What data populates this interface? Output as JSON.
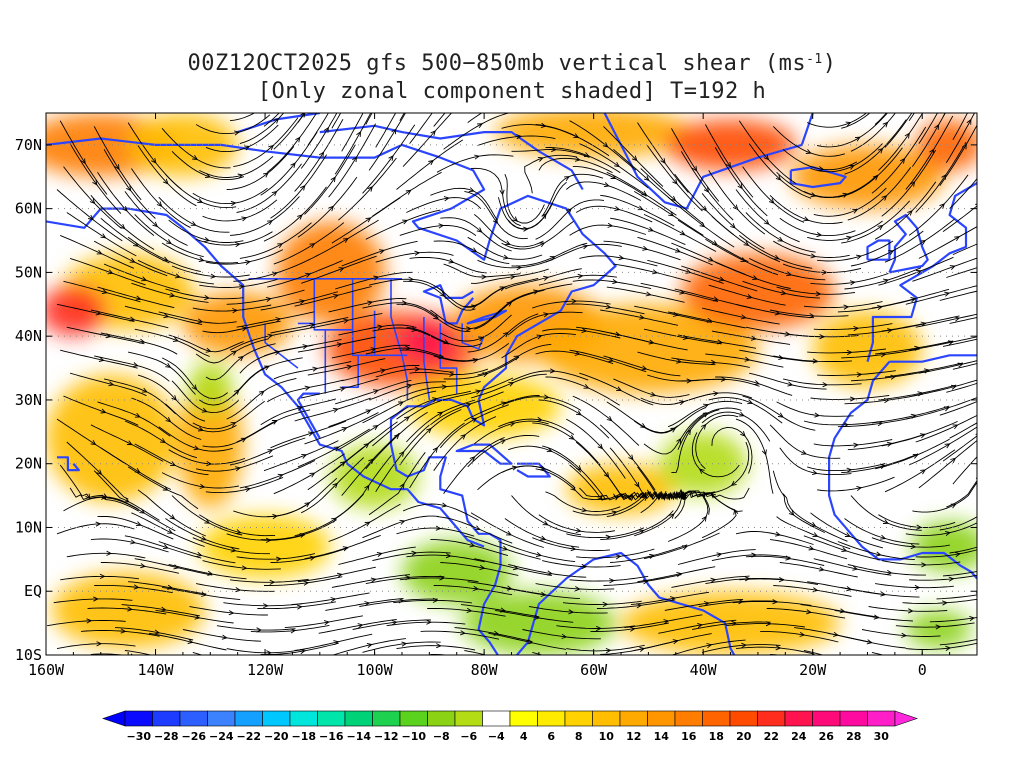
{
  "figure": {
    "title_line1": "00Z12OCT2025 gfs 500−850mb vertical shear (ms",
    "title_unit_sup": "-1",
    "title_line1_end": ")",
    "title_line2": "[Only zonal component shaded] T=192 h"
  },
  "map": {
    "lon_range": [
      -160,
      10
    ],
    "lat_range": [
      -10,
      75
    ],
    "x_ticks": [
      {
        "lon": -160,
        "label": "160W"
      },
      {
        "lon": -140,
        "label": "140W"
      },
      {
        "lon": -120,
        "label": "120W"
      },
      {
        "lon": -100,
        "label": "100W"
      },
      {
        "lon": -80,
        "label": "80W"
      },
      {
        "lon": -60,
        "label": "60W"
      },
      {
        "lon": -40,
        "label": "40W"
      },
      {
        "lon": -20,
        "label": "20W"
      },
      {
        "lon": 0,
        "label": "0"
      }
    ],
    "y_ticks": [
      {
        "lat": 70,
        "label": "70N"
      },
      {
        "lat": 60,
        "label": "60N"
      },
      {
        "lat": 50,
        "label": "50N"
      },
      {
        "lat": 40,
        "label": "40N"
      },
      {
        "lat": 30,
        "label": "30N"
      },
      {
        "lat": 20,
        "label": "20N"
      },
      {
        "lat": 10,
        "label": "10N"
      },
      {
        "lat": 0,
        "label": "EQ"
      },
      {
        "lat": -10,
        "label": "10S"
      }
    ],
    "coast_color": "#2b45ff",
    "streamline_color": "#000000"
  },
  "colorbar": {
    "labels": [
      "-30",
      "-28",
      "-26",
      "-24",
      "-22",
      "-20",
      "-18",
      "-16",
      "-14",
      "-12",
      "-10",
      "-8",
      "-6",
      "-4",
      "4",
      "6",
      "8",
      "10",
      "12",
      "14",
      "16",
      "18",
      "20",
      "22",
      "24",
      "26",
      "28",
      "30"
    ],
    "colors": [
      "#0a0aff",
      "#1e3cff",
      "#2d5fff",
      "#3c82ff",
      "#14a0ff",
      "#00c8ff",
      "#00e6dc",
      "#00e6aa",
      "#00d278",
      "#1ed250",
      "#5ad21e",
      "#8cd214",
      "#b4dc14",
      "#ffffff",
      "#ffff00",
      "#ffeb00",
      "#ffd200",
      "#ffbe00",
      "#ffaa00",
      "#ff9600",
      "#ff7d00",
      "#ff6400",
      "#ff4b00",
      "#ff2d1e",
      "#ff1450",
      "#ff0a78",
      "#ff0aa0",
      "#ff1ec8"
    ],
    "under_color": "#0000ff",
    "over_color": "#ff28dc"
  },
  "shading_blobs": [
    {
      "lon": -150,
      "lat": 70,
      "rlon": 14,
      "rlat": 5,
      "color": "#ff7d00"
    },
    {
      "lon": -135,
      "lat": 70,
      "rlon": 10,
      "rlat": 5,
      "color": "#ffbe00"
    },
    {
      "lon": -60,
      "lat": 72,
      "rlon": 18,
      "rlat": 4,
      "color": "#ffaa00"
    },
    {
      "lon": -35,
      "lat": 70,
      "rlon": 12,
      "rlat": 4,
      "color": "#ff4b00"
    },
    {
      "lon": -10,
      "lat": 65,
      "rlon": 14,
      "rlat": 5,
      "color": "#ff9600"
    },
    {
      "lon": 5,
      "lat": 70,
      "rlon": 6,
      "rlat": 4,
      "color": "#ff6400"
    },
    {
      "lon": -145,
      "lat": 47,
      "rlon": 12,
      "rlat": 6,
      "color": "#ffbe00"
    },
    {
      "lon": -155,
      "lat": 44,
      "rlon": 6,
      "rlat": 4,
      "color": "#ff2d1e"
    },
    {
      "lon": -125,
      "lat": 42,
      "rlon": 10,
      "rlat": 5,
      "color": "#ff9600"
    },
    {
      "lon": -108,
      "lat": 50,
      "rlon": 10,
      "rlat": 8,
      "color": "#ff7d00"
    },
    {
      "lon": -95,
      "lat": 38,
      "rlon": 14,
      "rlat": 6,
      "color": "#ff4b00"
    },
    {
      "lon": -90,
      "lat": 39,
      "rlon": 6,
      "rlat": 3,
      "color": "#ff1450"
    },
    {
      "lon": -72,
      "lat": 42,
      "rlon": 14,
      "rlat": 6,
      "color": "#ff9600"
    },
    {
      "lon": -50,
      "lat": 38,
      "rlon": 20,
      "rlat": 7,
      "color": "#ffaa00"
    },
    {
      "lon": -30,
      "lat": 47,
      "rlon": 14,
      "rlat": 6,
      "color": "#ff6400"
    },
    {
      "lon": -10,
      "lat": 38,
      "rlon": 10,
      "rlat": 6,
      "color": "#ffbe00"
    },
    {
      "lon": -80,
      "lat": 29,
      "rlon": 14,
      "rlat": 5,
      "color": "#ffd200"
    },
    {
      "lon": -148,
      "lat": 24,
      "rlon": 12,
      "rlat": 10,
      "color": "#ffbe00"
    },
    {
      "lon": -130,
      "lat": 23,
      "rlon": 6,
      "rlat": 10,
      "color": "#ffaa00"
    },
    {
      "lon": -145,
      "lat": -3,
      "rlon": 14,
      "rlat": 6,
      "color": "#ffbe00"
    },
    {
      "lon": -120,
      "lat": 7,
      "rlon": 12,
      "rlat": 5,
      "color": "#ffd200"
    },
    {
      "lon": -35,
      "lat": -5,
      "rlon": 20,
      "rlat": 5,
      "color": "#ffbe00"
    },
    {
      "lon": -55,
      "lat": 16,
      "rlon": 10,
      "rlat": 4,
      "color": "#ffbe00"
    },
    {
      "lon": -85,
      "lat": 3,
      "rlon": 10,
      "rlat": 5,
      "color": "#8cd214"
    },
    {
      "lon": -70,
      "lat": -5,
      "rlon": 14,
      "rlat": 5,
      "color": "#8cd214"
    },
    {
      "lon": -100,
      "lat": 18,
      "rlon": 8,
      "rlat": 5,
      "color": "#b4dc14"
    },
    {
      "lon": -40,
      "lat": 20,
      "rlon": 8,
      "rlat": 5,
      "color": "#b4dc14"
    },
    {
      "lon": 5,
      "lat": 7,
      "rlon": 7,
      "rlat": 4,
      "color": "#8cd214"
    },
    {
      "lon": 3,
      "lat": -6,
      "rlon": 6,
      "rlat": 3,
      "color": "#8cd214"
    },
    {
      "lon": -130,
      "lat": 32,
      "rlon": 4,
      "rlat": 4,
      "color": "#b4dc14"
    }
  ],
  "streamline_centers": [
    {
      "lon": -35,
      "lat": 25,
      "type": "anticyclone"
    },
    {
      "lon": -130,
      "lat": 29,
      "type": "cyclone"
    },
    {
      "lon": -83,
      "lat": 43,
      "type": "cyclone"
    },
    {
      "lon": -73,
      "lat": 56,
      "type": "cyclone"
    }
  ]
}
